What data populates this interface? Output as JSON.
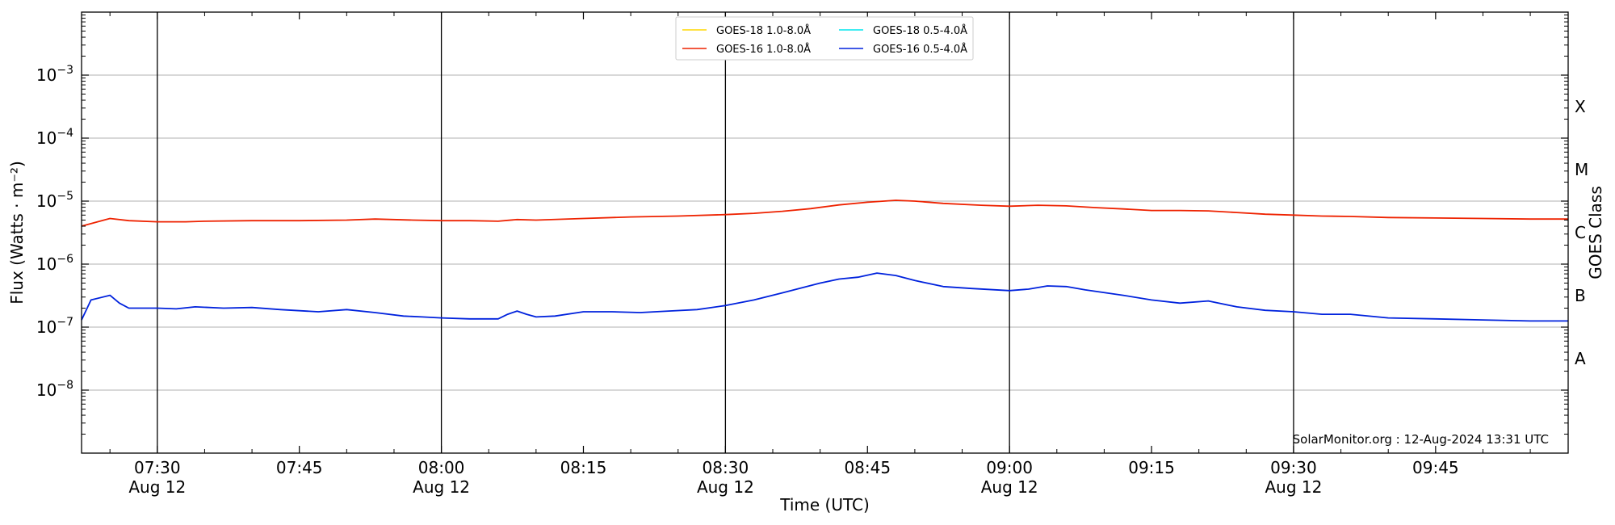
{
  "chart_data": {
    "type": "line",
    "xlabel": "Time (UTC)",
    "ylabel": "Flux (Watts · m⁻²)",
    "y2label": "GOES Class",
    "yscale": "log",
    "ylim": [
      1e-09,
      0.01
    ],
    "xlim": [
      "07:22",
      "09:59"
    ],
    "grid": "horizontal major",
    "legend_position": "top-center",
    "x_ticks": [
      {
        "time": "07:30",
        "label": "07:30",
        "sublabel": "Aug 12",
        "vline": true
      },
      {
        "time": "07:45",
        "label": "07:45",
        "sublabel": "",
        "vline": false
      },
      {
        "time": "08:00",
        "label": "08:00",
        "sublabel": "Aug 12",
        "vline": true
      },
      {
        "time": "08:15",
        "label": "08:15",
        "sublabel": "",
        "vline": false
      },
      {
        "time": "08:30",
        "label": "08:30",
        "sublabel": "Aug 12",
        "vline": true
      },
      {
        "time": "08:45",
        "label": "08:45",
        "sublabel": "",
        "vline": false
      },
      {
        "time": "09:00",
        "label": "09:00",
        "sublabel": "Aug 12",
        "vline": true
      },
      {
        "time": "09:15",
        "label": "09:15",
        "sublabel": "",
        "vline": false
      },
      {
        "time": "09:30",
        "label": "09:30",
        "sublabel": "Aug 12",
        "vline": true
      },
      {
        "time": "09:45",
        "label": "09:45",
        "sublabel": "",
        "vline": false
      }
    ],
    "y_ticks": [
      {
        "exp": -8,
        "label": "10",
        "sup": "−8"
      },
      {
        "exp": -7,
        "label": "10",
        "sup": "−7"
      },
      {
        "exp": -6,
        "label": "10",
        "sup": "−6"
      },
      {
        "exp": -5,
        "label": "10",
        "sup": "−5"
      },
      {
        "exp": -4,
        "label": "10",
        "sup": "−4"
      },
      {
        "exp": -3,
        "label": "10",
        "sup": "−3"
      }
    ],
    "goes_classes": [
      {
        "label": "A",
        "exp": -7.5
      },
      {
        "label": "B",
        "exp": -6.5
      },
      {
        "label": "C",
        "exp": -5.5
      },
      {
        "label": "M",
        "exp": -4.5
      },
      {
        "label": "X",
        "exp": -3.5
      }
    ],
    "series": [
      {
        "name": "GOES-18 1.0-8.0Å",
        "color": "#ffd700",
        "x": [],
        "y": []
      },
      {
        "name": "GOES-16 1.0-8.0Å",
        "color": "#ee2200",
        "x": [
          "07:22",
          "07:25",
          "07:27",
          "07:30",
          "07:33",
          "07:35",
          "07:40",
          "07:45",
          "07:50",
          "07:53",
          "07:57",
          "08:00",
          "08:03",
          "08:06",
          "08:08",
          "08:10",
          "08:15",
          "08:20",
          "08:25",
          "08:30",
          "08:33",
          "08:36",
          "08:39",
          "08:42",
          "08:45",
          "08:48",
          "08:50",
          "08:53",
          "08:57",
          "09:00",
          "09:03",
          "09:06",
          "09:09",
          "09:12",
          "09:15",
          "09:18",
          "09:21",
          "09:24",
          "09:27",
          "09:30",
          "09:33",
          "09:36",
          "09:40",
          "09:45",
          "09:50",
          "09:55",
          "09:59"
        ],
        "y": [
          4e-06,
          5.3e-06,
          4.9e-06,
          4.7e-06,
          4.7e-06,
          4.8e-06,
          4.9e-06,
          4.9e-06,
          5e-06,
          5.2e-06,
          5e-06,
          4.9e-06,
          4.9e-06,
          4.8e-06,
          5.1e-06,
          5e-06,
          5.3e-06,
          5.6e-06,
          5.8e-06,
          6.1e-06,
          6.4e-06,
          6.9e-06,
          7.6e-06,
          8.7e-06,
          9.6e-06,
          1.03e-05,
          1e-05,
          9.2e-06,
          8.6e-06,
          8.3e-06,
          8.6e-06,
          8.4e-06,
          7.9e-06,
          7.5e-06,
          7.1e-06,
          7.1e-06,
          7e-06,
          6.6e-06,
          6.2e-06,
          6e-06,
          5.8e-06,
          5.7e-06,
          5.5e-06,
          5.4e-06,
          5.3e-06,
          5.2e-06,
          5.2e-06
        ]
      },
      {
        "name": "GOES-18 0.5-4.0Å",
        "color": "#00e5ee",
        "x": [],
        "y": []
      },
      {
        "name": "GOES-16 0.5-4.0Å",
        "color": "#0022dd",
        "x": [
          "07:22",
          "07:23",
          "07:25",
          "07:26",
          "07:27",
          "07:28",
          "07:30",
          "07:32",
          "07:34",
          "07:37",
          "07:40",
          "07:43",
          "07:47",
          "07:50",
          "07:53",
          "07:56",
          "07:58",
          "08:00",
          "08:03",
          "08:06",
          "08:07",
          "08:08",
          "08:09",
          "08:10",
          "08:12",
          "08:15",
          "08:18",
          "08:21",
          "08:24",
          "08:27",
          "08:30",
          "08:33",
          "08:36",
          "08:40",
          "08:42",
          "08:44",
          "08:46",
          "08:48",
          "08:50",
          "08:53",
          "08:56",
          "09:00",
          "09:02",
          "09:04",
          "09:06",
          "09:08",
          "09:12",
          "09:15",
          "09:18",
          "09:21",
          "09:24",
          "09:27",
          "09:30",
          "09:33",
          "09:36",
          "09:40",
          "09:45",
          "09:50",
          "09:55",
          "09:59"
        ],
        "y": [
          1.3e-07,
          2.7e-07,
          3.2e-07,
          2.4e-07,
          2e-07,
          2e-07,
          2e-07,
          1.95e-07,
          2.1e-07,
          2e-07,
          2.05e-07,
          1.9e-07,
          1.75e-07,
          1.9e-07,
          1.7e-07,
          1.5e-07,
          1.45e-07,
          1.4e-07,
          1.35e-07,
          1.35e-07,
          1.6e-07,
          1.8e-07,
          1.6e-07,
          1.45e-07,
          1.5e-07,
          1.75e-07,
          1.75e-07,
          1.7e-07,
          1.8e-07,
          1.9e-07,
          2.2e-07,
          2.7e-07,
          3.5e-07,
          5e-07,
          5.8e-07,
          6.2e-07,
          7.2e-07,
          6.6e-07,
          5.5e-07,
          4.4e-07,
          4.1e-07,
          3.8e-07,
          4e-07,
          4.5e-07,
          4.4e-07,
          3.9e-07,
          3.2e-07,
          2.7e-07,
          2.4e-07,
          2.6e-07,
          2.1e-07,
          1.85e-07,
          1.75e-07,
          1.6e-07,
          1.6e-07,
          1.4e-07,
          1.35e-07,
          1.3e-07,
          1.25e-07,
          1.25e-07
        ]
      }
    ],
    "credit": "SolarMonitor.org : 12-Aug-2024 13:31 UTC"
  }
}
